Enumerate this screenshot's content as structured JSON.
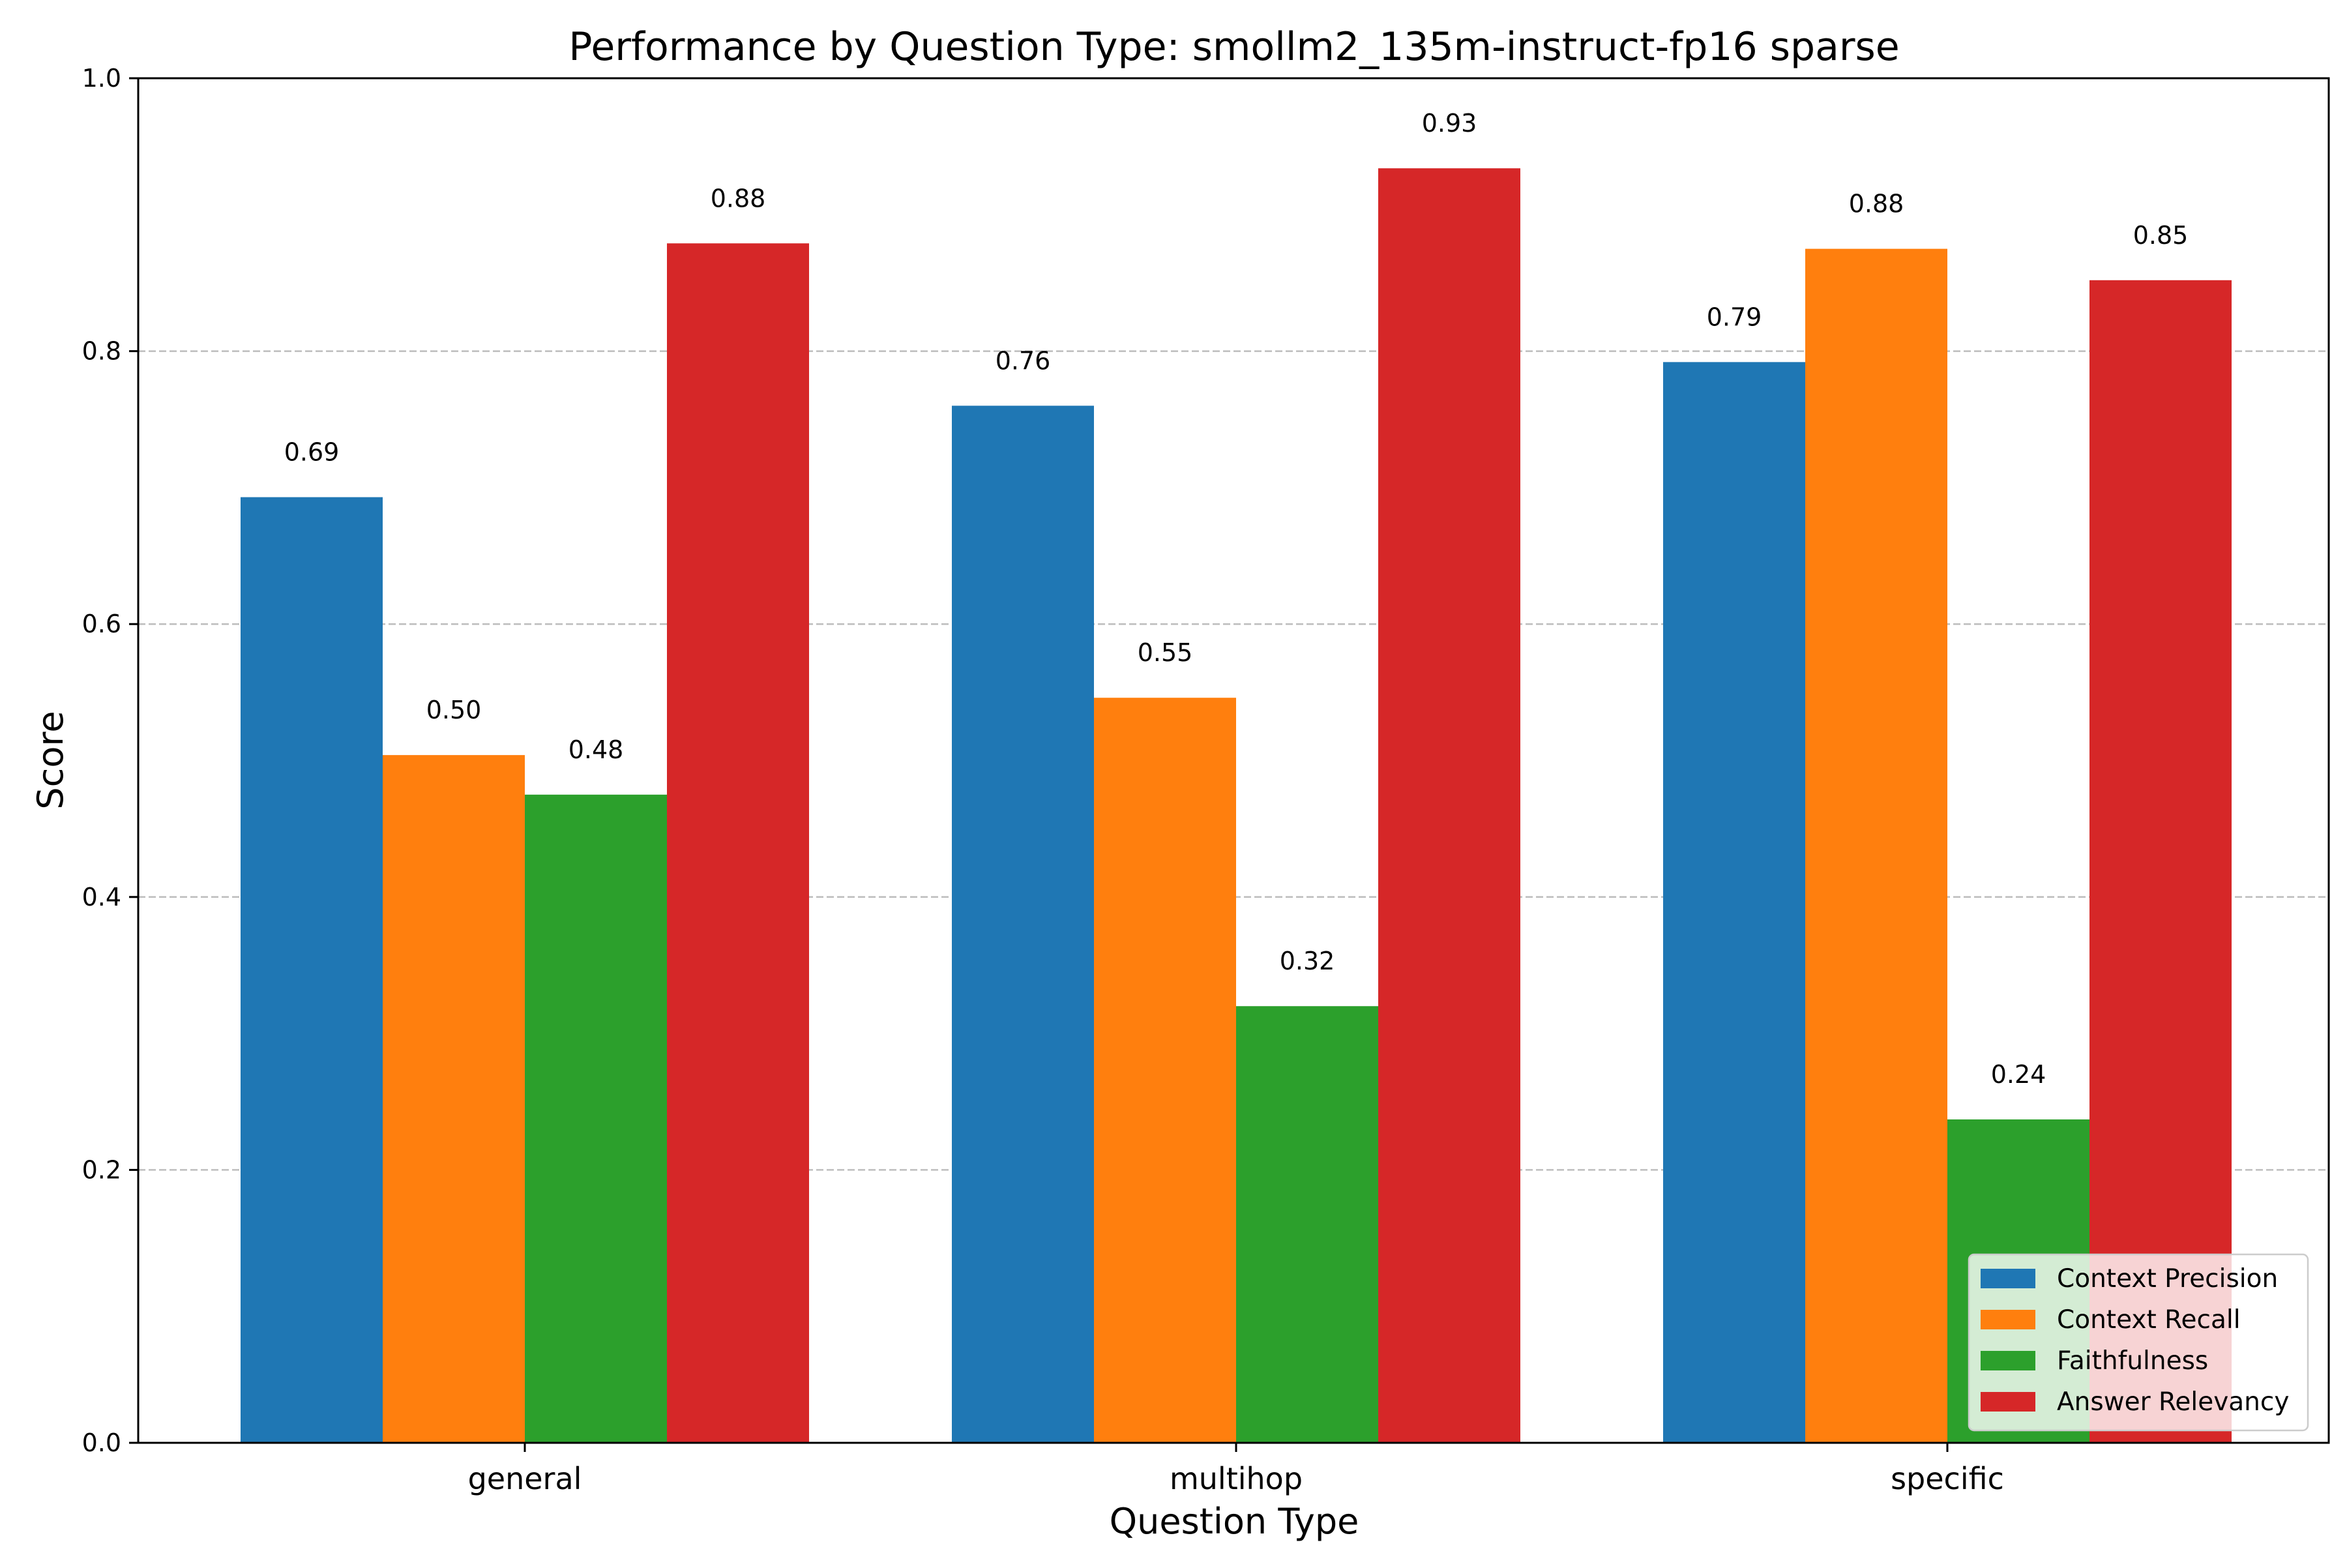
{
  "chart_data": {
    "type": "bar",
    "title": "Performance by Question Type: smollm2_135m-instruct-fp16 sparse",
    "xlabel": "Question Type",
    "ylabel": "Score",
    "ylim": [
      0,
      1.0
    ],
    "yticks": [
      "0.0",
      "0.2",
      "0.4",
      "0.6",
      "0.8",
      "1.0"
    ],
    "grid": "y-dashed",
    "legend_position": "lower-right",
    "categories": [
      "general",
      "multihop",
      "specific"
    ],
    "series": [
      {
        "name": "Context Precision",
        "color": "#1f77b4",
        "values": [
          0.693,
          0.76,
          0.792
        ],
        "labels": [
          "0.69",
          "0.76",
          "0.79"
        ]
      },
      {
        "name": "Context Recall",
        "color": "#ff7f0e",
        "values": [
          0.504,
          0.546,
          0.875
        ],
        "labels": [
          "0.50",
          "0.55",
          "0.88"
        ]
      },
      {
        "name": "Faithfulness",
        "color": "#2ca02c",
        "values": [
          0.475,
          0.32,
          0.237
        ],
        "labels": [
          "0.48",
          "0.32",
          "0.24"
        ]
      },
      {
        "name": "Answer Relevancy",
        "color": "#d62728",
        "values": [
          0.879,
          0.934,
          0.852
        ],
        "labels": [
          "0.88",
          "0.93",
          "0.85"
        ]
      }
    ]
  }
}
